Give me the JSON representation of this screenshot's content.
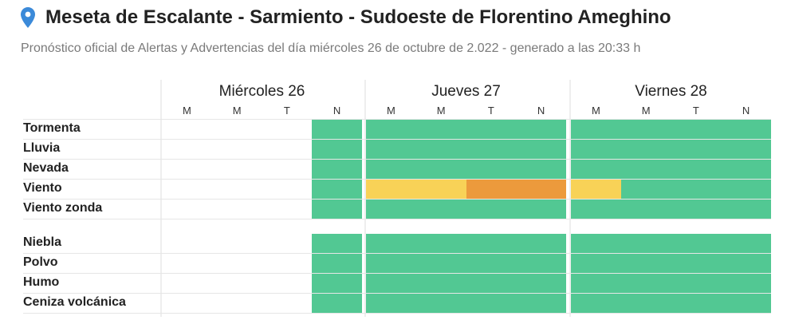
{
  "header": {
    "title": "Meseta de Escalante - Sarmiento - Sudoeste de Florentino Ameghino",
    "subtitle": "Pronóstico oficial de Alertas y Advertencias del día miércoles 26 de octubre de 2.022 - generado a las 20:33 h",
    "icon": "location-pin-icon"
  },
  "days": [
    {
      "label": "Miércoles 26",
      "periods": [
        "M",
        "M",
        "T",
        "N"
      ]
    },
    {
      "label": "Jueves 27",
      "periods": [
        "M",
        "M",
        "T",
        "N"
      ]
    },
    {
      "label": "Viernes 28",
      "periods": [
        "M",
        "M",
        "T",
        "N"
      ]
    }
  ],
  "rows": [
    {
      "label": "Tormenta",
      "levels": [
        "none",
        "none",
        "none",
        "green",
        "green",
        "green",
        "green",
        "green",
        "green",
        "green",
        "green",
        "green"
      ]
    },
    {
      "label": "Lluvia",
      "levels": [
        "none",
        "none",
        "none",
        "green",
        "green",
        "green",
        "green",
        "green",
        "green",
        "green",
        "green",
        "green"
      ]
    },
    {
      "label": "Nevada",
      "levels": [
        "none",
        "none",
        "none",
        "green",
        "green",
        "green",
        "green",
        "green",
        "green",
        "green",
        "green",
        "green"
      ]
    },
    {
      "label": "Viento",
      "levels": [
        "none",
        "none",
        "none",
        "green",
        "yellow",
        "yellow",
        "orange",
        "orange",
        "yellow",
        "green",
        "green",
        "green"
      ]
    },
    {
      "label": "Viento zonda",
      "levels": [
        "none",
        "none",
        "none",
        "green",
        "green",
        "green",
        "green",
        "green",
        "green",
        "green",
        "green",
        "green"
      ]
    },
    {
      "label": "Niebla",
      "levels": [
        "none",
        "none",
        "none",
        "green",
        "green",
        "green",
        "green",
        "green",
        "green",
        "green",
        "green",
        "green"
      ]
    },
    {
      "label": "Polvo",
      "levels": [
        "none",
        "none",
        "none",
        "green",
        "green",
        "green",
        "green",
        "green",
        "green",
        "green",
        "green",
        "green"
      ]
    },
    {
      "label": "Humo",
      "levels": [
        "none",
        "none",
        "none",
        "green",
        "green",
        "green",
        "green",
        "green",
        "green",
        "green",
        "green",
        "green"
      ]
    },
    {
      "label": "Ceniza volcánica",
      "levels": [
        "none",
        "none",
        "none",
        "green",
        "green",
        "green",
        "green",
        "green",
        "green",
        "green",
        "green",
        "green"
      ]
    }
  ],
  "colors": {
    "green": "#52c893",
    "yellow": "#f8d257",
    "orange": "#ec9a3c",
    "none": "#ffffff",
    "pin": "#3b8ad9"
  }
}
